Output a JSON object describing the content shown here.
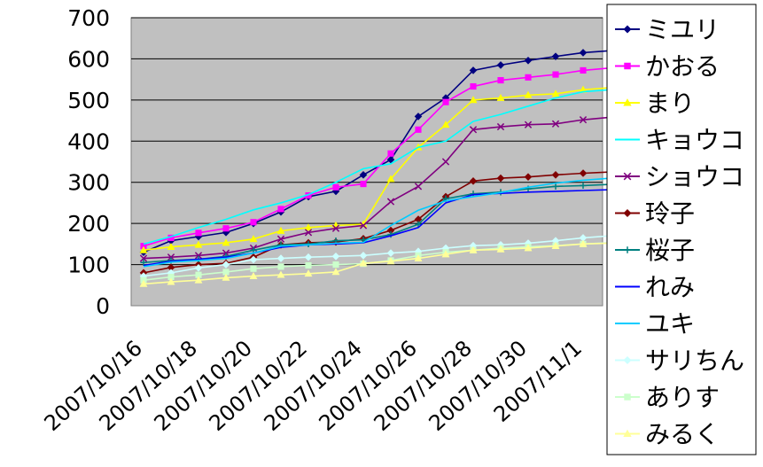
{
  "chart_data": {
    "type": "line",
    "title": "",
    "xlabel": "",
    "ylabel": "",
    "ylim": [
      0,
      700
    ],
    "yticks": [
      0,
      100,
      200,
      300,
      400,
      500,
      600,
      700
    ],
    "grid": true,
    "legend_position": "right",
    "x": [
      "2007/10/16",
      "2007/10/17",
      "2007/10/18",
      "2007/10/19",
      "2007/10/20",
      "2007/10/21",
      "2007/10/22",
      "2007/10/23",
      "2007/10/24",
      "2007/10/25",
      "2007/10/26",
      "2007/10/27",
      "2007/10/28",
      "2007/10/29",
      "2007/10/30",
      "2007/10/31",
      "2007/11/1",
      "2007/11/2"
    ],
    "xtick_labels": [
      "2007/10/16",
      "2007/10/18",
      "2007/10/20",
      "2007/10/22",
      "2007/10/24",
      "2007/10/26",
      "2007/10/28",
      "2007/10/30",
      "2007/11/1"
    ],
    "series": [
      {
        "name": "ミユリ",
        "color": "#000080",
        "marker": "diamond",
        "values": [
          130,
          158,
          168,
          178,
          200,
          228,
          265,
          278,
          318,
          355,
          460,
          505,
          572,
          585,
          596,
          606,
          615,
          620
        ]
      },
      {
        "name": "かおる",
        "color": "#ff00ff",
        "marker": "square",
        "values": [
          145,
          165,
          177,
          188,
          203,
          235,
          268,
          288,
          296,
          370,
          428,
          495,
          533,
          548,
          555,
          562,
          572,
          578
        ]
      },
      {
        "name": "まり",
        "color": "#ffff00",
        "marker": "triangle",
        "values": [
          135,
          143,
          148,
          153,
          162,
          182,
          190,
          195,
          198,
          308,
          385,
          440,
          500,
          505,
          512,
          515,
          525,
          530
        ]
      },
      {
        "name": "キョウコ",
        "color": "#00ffff",
        "marker": "none",
        "values": [
          150,
          168,
          190,
          210,
          233,
          250,
          270,
          300,
          333,
          345,
          385,
          400,
          448,
          465,
          485,
          505,
          520,
          525
        ]
      },
      {
        "name": "ショウコ",
        "color": "#800080",
        "marker": "x",
        "values": [
          115,
          118,
          122,
          128,
          140,
          162,
          178,
          188,
          195,
          253,
          290,
          350,
          428,
          435,
          440,
          442,
          452,
          458
        ]
      },
      {
        "name": "玲子",
        "color": "#800000",
        "marker": "diamond",
        "values": [
          80,
          93,
          100,
          103,
          118,
          148,
          153,
          155,
          163,
          183,
          210,
          265,
          303,
          310,
          313,
          318,
          322,
          325
        ]
      },
      {
        "name": "桜子",
        "color": "#008080",
        "marker": "plus",
        "values": [
          105,
          110,
          113,
          120,
          135,
          148,
          150,
          158,
          160,
          173,
          198,
          260,
          272,
          276,
          284,
          290,
          292,
          295
        ]
      },
      {
        "name": "れみ",
        "color": "#0000ff",
        "marker": "none",
        "values": [
          98,
          108,
          113,
          118,
          128,
          142,
          148,
          150,
          153,
          170,
          190,
          250,
          270,
          273,
          276,
          278,
          280,
          282
        ]
      },
      {
        "name": "ユキ",
        "color": "#00ccff",
        "marker": "none",
        "values": [
          95,
          106,
          110,
          115,
          128,
          145,
          148,
          152,
          154,
          195,
          232,
          255,
          265,
          275,
          288,
          298,
          305,
          310
        ]
      },
      {
        "name": "サリちん",
        "color": "#ccffff",
        "marker": "diamond",
        "values": [
          72,
          80,
          92,
          100,
          112,
          115,
          118,
          120,
          122,
          128,
          132,
          140,
          146,
          148,
          152,
          158,
          165,
          170
        ]
      },
      {
        "name": "ありす",
        "color": "#ccffcc",
        "marker": "square",
        "values": [
          62,
          70,
          75,
          82,
          90,
          95,
          98,
          100,
          102,
          110,
          122,
          130,
          135,
          140,
          143,
          146,
          150,
          153
        ]
      },
      {
        "name": "みるく",
        "color": "#ffff99",
        "marker": "triangle",
        "values": [
          53,
          58,
          62,
          68,
          72,
          75,
          78,
          82,
          103,
          108,
          115,
          125,
          135,
          137,
          140,
          145,
          150,
          152
        ]
      }
    ]
  }
}
